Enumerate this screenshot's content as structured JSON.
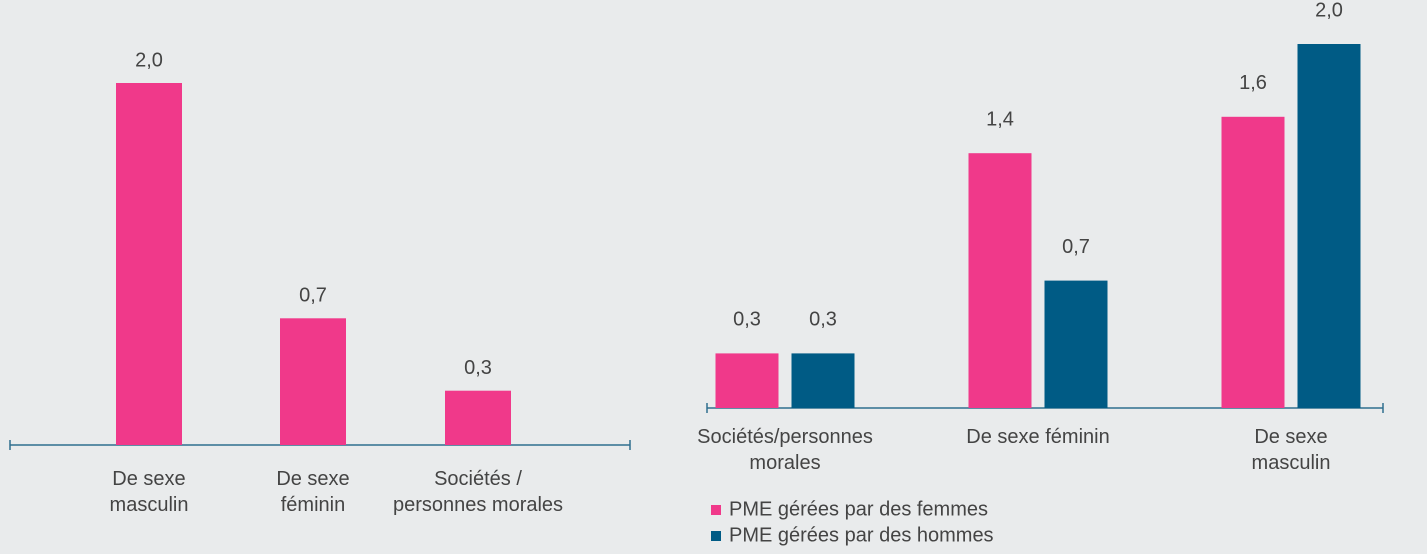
{
  "chart_data": [
    {
      "type": "bar",
      "categories": [
        "De sexe\nmasculin",
        "De sexe\nféminin",
        "Sociétés /\npersonnes morales"
      ],
      "values": [
        2.0,
        0.7,
        0.3
      ],
      "value_labels": [
        "2,0",
        "0,7",
        "0,3"
      ],
      "color": "#f0398a"
    },
    {
      "type": "grouped_bar",
      "categories": [
        "Sociétés/personnes\nmorales",
        "De sexe féminin",
        "De sexe masculin"
      ],
      "series": [
        {
          "name": "PME gérées par des femmes",
          "color": "#f0398a",
          "values": [
            0.3,
            1.4,
            1.6
          ],
          "value_labels": [
            "0,3",
            "1,4",
            "1,6"
          ]
        },
        {
          "name": "PME gérées par des hommes",
          "color": "#005b85",
          "values": [
            0.3,
            0.7,
            2.0
          ],
          "value_labels": [
            "0,3",
            "0,7",
            "2,0"
          ]
        }
      ],
      "legend": "bottom-left"
    }
  ]
}
